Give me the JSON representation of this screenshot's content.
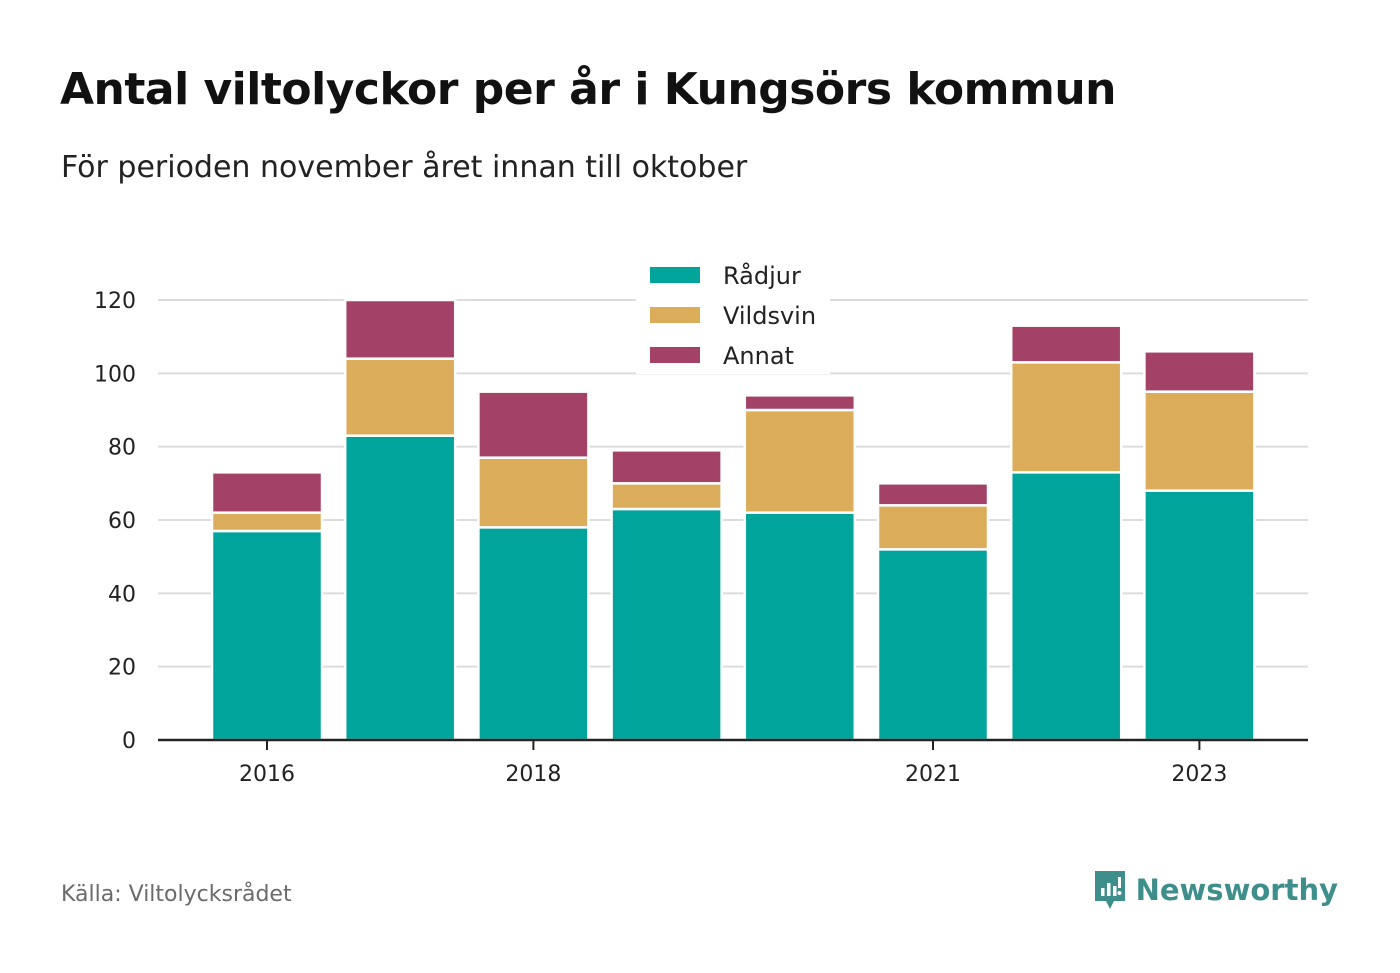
{
  "title": "Antal viltolyckor per år i Kungsörs kommun",
  "subtitle": "För perioden november året innan till oktober",
  "source": "Källa: Viltolycksrådet",
  "brand": {
    "name": "Newsworthy",
    "icon": "newsworthy-logo-icon"
  },
  "colors": {
    "Rådjur": "#00a49a",
    "Vildsvin": "#dbad5b",
    "Annat": "#a44166",
    "grid": "#dcdcdc",
    "axis": "#222222"
  },
  "chart_data": {
    "type": "bar",
    "stacked": true,
    "categories": [
      "2016",
      "2017",
      "2018",
      "2019",
      "2020",
      "2021",
      "2022",
      "2023"
    ],
    "x_tick_labels": [
      "2016",
      "2018",
      "2021",
      "2023"
    ],
    "series": [
      {
        "name": "Rådjur",
        "values": [
          57,
          83,
          58,
          63,
          62,
          52,
          73,
          68
        ]
      },
      {
        "name": "Vildsvin",
        "values": [
          5,
          21,
          19,
          7,
          28,
          12,
          30,
          27
        ]
      },
      {
        "name": "Annat",
        "values": [
          11,
          16,
          18,
          9,
          4,
          6,
          10,
          11
        ]
      }
    ],
    "y_ticks": [
      0,
      20,
      40,
      60,
      80,
      100,
      120
    ],
    "ylim": [
      0,
      120
    ],
    "xlabel": "",
    "ylabel": "",
    "grid": true,
    "legend_position": "top-center"
  }
}
